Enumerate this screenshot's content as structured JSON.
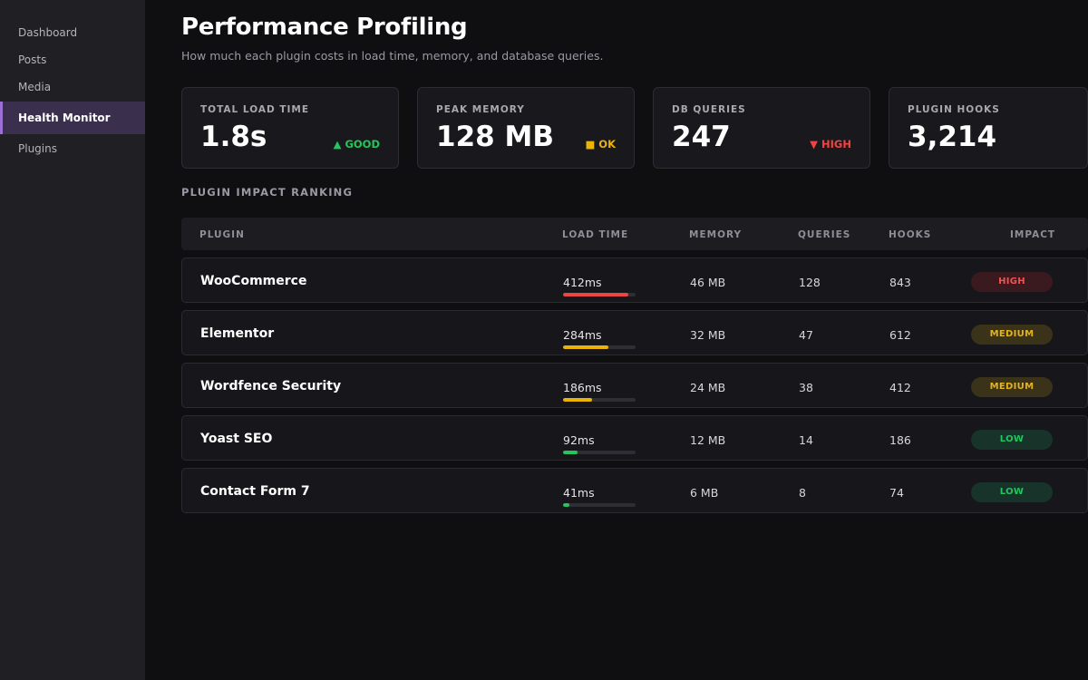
{
  "sidebar": {
    "items": [
      {
        "label": "Dashboard",
        "active": false
      },
      {
        "label": "Posts",
        "active": false
      },
      {
        "label": "Media",
        "active": false
      },
      {
        "label": "Health Monitor",
        "active": true
      },
      {
        "label": "Plugins",
        "active": false
      }
    ]
  },
  "header": {
    "title": "Performance Profiling",
    "subtitle": "How much each plugin costs in load time, memory, and database queries."
  },
  "stats": [
    {
      "label": "TOTAL LOAD TIME",
      "value": "1.8s",
      "status": "▲ GOOD",
      "status_color": "#22c55e"
    },
    {
      "label": "PEAK MEMORY",
      "value": "128 MB",
      "status": "■ OK",
      "status_color": "#eab308"
    },
    {
      "label": "DB QUERIES",
      "value": "247",
      "status": "▼ HIGH",
      "status_color": "#ef4444"
    },
    {
      "label": "PLUGIN HOOKS",
      "value": "3,214",
      "status": "",
      "status_color": ""
    }
  ],
  "ranking": {
    "title": "PLUGIN IMPACT RANKING",
    "columns": {
      "plugin": "PLUGIN",
      "load_time": "LOAD TIME",
      "memory": "MEMORY",
      "queries": "QUERIES",
      "hooks": "HOOKS",
      "impact": "IMPACT"
    },
    "rows": [
      {
        "name": "WooCommerce",
        "load": "412ms",
        "load_fraction": 0.9,
        "memory": "46 MB",
        "queries": "128",
        "hooks": "843",
        "impact": "HIGH",
        "bar_color": "#ef4444",
        "badge_bg": "#3a1a1e",
        "badge_color": "#f05252"
      },
      {
        "name": "Elementor",
        "load": "284ms",
        "load_fraction": 0.62,
        "memory": "32 MB",
        "queries": "47",
        "hooks": "612",
        "impact": "MEDIUM",
        "bar_color": "#eab308",
        "badge_bg": "#3a3219",
        "badge_color": "#e5b41a"
      },
      {
        "name": "Wordfence Security",
        "load": "186ms",
        "load_fraction": 0.4,
        "memory": "24 MB",
        "queries": "38",
        "hooks": "412",
        "impact": "MEDIUM",
        "bar_color": "#eab308",
        "badge_bg": "#3a3219",
        "badge_color": "#e5b41a"
      },
      {
        "name": "Yoast SEO",
        "load": "92ms",
        "load_fraction": 0.2,
        "memory": "12 MB",
        "queries": "14",
        "hooks": "186",
        "impact": "LOW",
        "bar_color": "#22c55e",
        "badge_bg": "#17332a",
        "badge_color": "#22c55e"
      },
      {
        "name": "Contact Form 7",
        "load": "41ms",
        "load_fraction": 0.09,
        "memory": "6 MB",
        "queries": "8",
        "hooks": "74",
        "impact": "LOW",
        "bar_color": "#22c55e",
        "badge_bg": "#17332a",
        "badge_color": "#22c55e"
      }
    ]
  }
}
